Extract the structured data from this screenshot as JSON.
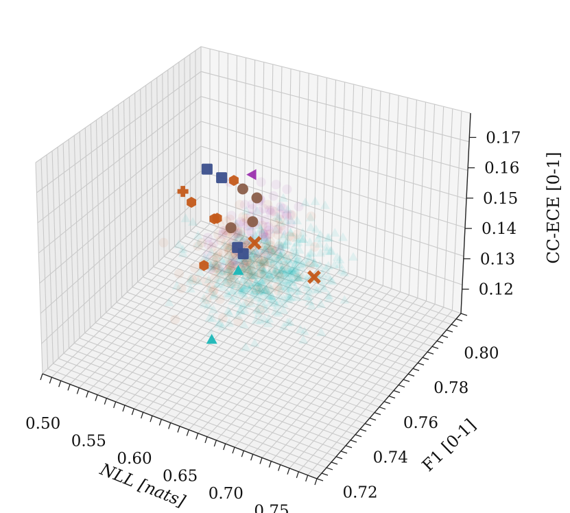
{
  "chart_data": {
    "type": "scatter",
    "projection": "3d",
    "xlabel": "NLL [nats]",
    "ylabel": "F1 [0-1]",
    "zlabel": "CC-ECE [0-1]",
    "xlim": [
      0.48,
      0.78
    ],
    "ylim": [
      0.715,
      0.81
    ],
    "zlim": [
      0.112,
      0.178
    ],
    "x_ticks": [
      0.5,
      0.55,
      0.6,
      0.65,
      0.7,
      0.75
    ],
    "x_tick_labels": [
      "0.50",
      "0.55",
      "0.60",
      "0.65",
      "0.70",
      "0.75"
    ],
    "y_ticks": [
      0.72,
      0.74,
      0.76,
      0.78,
      0.8
    ],
    "y_tick_labels": [
      "0.72",
      "0.74",
      "0.76",
      "0.78",
      "0.80"
    ],
    "z_ticks": [
      0.12,
      0.13,
      0.14,
      0.15,
      0.16,
      0.17
    ],
    "z_tick_labels": [
      "0.12",
      "0.13",
      "0.14",
      "0.15",
      "0.16",
      "0.17"
    ],
    "grid": true,
    "colors": {
      "blue": "#3b4f8c",
      "orange": "#c45a1a",
      "cyan": "#1ab7b7",
      "purple": "#9b2fae",
      "brown": "#8a5e4a"
    },
    "clouds": [
      {
        "color": "#1ab7b7",
        "marker": "triangle",
        "count": 520,
        "opacity": 0.09,
        "x_mean": 0.655,
        "x_sd": 0.03,
        "y_mean": 0.755,
        "y_sd": 0.012,
        "z_mean": 0.144,
        "z_sd": 0.004
      },
      {
        "color": "#c45a1a",
        "marker": "circle",
        "count": 160,
        "opacity": 0.07,
        "x_mean": 0.615,
        "x_sd": 0.025,
        "y_mean": 0.765,
        "y_sd": 0.012,
        "z_mean": 0.139,
        "z_sd": 0.004
      },
      {
        "color": "#9b2fae",
        "marker": "circle",
        "count": 70,
        "opacity": 0.07,
        "x_mean": 0.605,
        "x_sd": 0.02,
        "y_mean": 0.775,
        "y_sd": 0.01,
        "z_mean": 0.143,
        "z_sd": 0.003
      }
    ],
    "series": [
      {
        "marker": "square",
        "color": "#3b4f8c",
        "points": [
          {
            "x": 0.525,
            "y": 0.79,
            "z": 0.147
          },
          {
            "x": 0.545,
            "y": 0.788,
            "z": 0.147
          },
          {
            "x": 0.605,
            "y": 0.765,
            "z": 0.141
          },
          {
            "x": 0.615,
            "y": 0.763,
            "z": 0.141
          }
        ]
      },
      {
        "marker": "hexagon",
        "color": "#c45a1a",
        "points": [
          {
            "x": 0.555,
            "y": 0.79,
            "z": 0.146
          },
          {
            "x": 0.53,
            "y": 0.778,
            "z": 0.142
          },
          {
            "x": 0.555,
            "y": 0.78,
            "z": 0.138
          },
          {
            "x": 0.548,
            "y": 0.782,
            "z": 0.136
          },
          {
            "x": 0.555,
            "y": 0.772,
            "z": 0.126
          }
        ]
      },
      {
        "marker": "plus",
        "color": "#c45a1a",
        "points": [
          {
            "x": 0.513,
            "y": 0.782,
            "z": 0.142
          }
        ]
      },
      {
        "marker": "x",
        "color": "#c45a1a",
        "points": [
          {
            "x": 0.615,
            "y": 0.77,
            "z": 0.141
          },
          {
            "x": 0.695,
            "y": 0.762,
            "z": 0.142
          }
        ]
      },
      {
        "marker": "triangle-left",
        "color": "#9b2fae",
        "points": [
          {
            "x": 0.575,
            "y": 0.79,
            "z": 0.15
          }
        ]
      },
      {
        "marker": "triangle",
        "color": "#1ab7b7",
        "points": [
          {
            "x": 0.615,
            "y": 0.76,
            "z": 0.137
          },
          {
            "x": 0.625,
            "y": 0.738,
            "z": 0.127
          }
        ]
      },
      {
        "marker": "circle",
        "color": "#8a5e4a",
        "points": [
          {
            "x": 0.565,
            "y": 0.79,
            "z": 0.144
          },
          {
            "x": 0.59,
            "y": 0.785,
            "z": 0.146
          },
          {
            "x": 0.6,
            "y": 0.777,
            "z": 0.143
          },
          {
            "x": 0.585,
            "y": 0.772,
            "z": 0.142
          }
        ]
      }
    ]
  }
}
